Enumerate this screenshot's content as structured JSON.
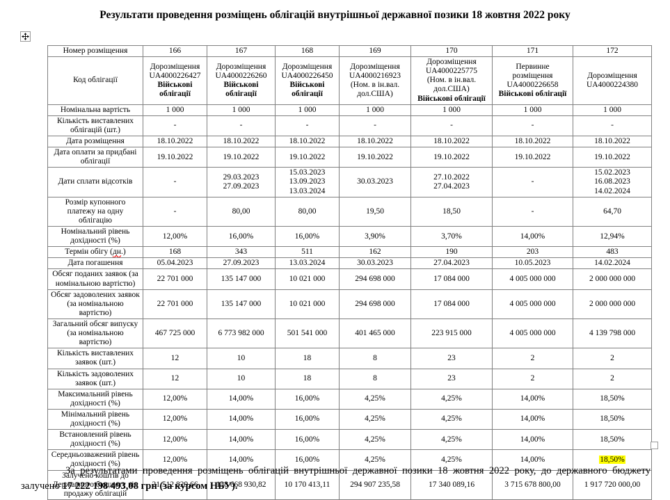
{
  "title": "Результати проведення розміщень облігацій внутрішньої державної позики 18 жовтня 2022 року",
  "colors": {
    "highlight": "#ffff00",
    "table_border": "#808080",
    "spellcheck_underline": "#ff0000"
  },
  "icons": {
    "move_handle": "table-move-handle",
    "resize_handle": "table-resize-handle"
  },
  "table": {
    "header_row": {
      "label": "Номер розміщення",
      "values": [
        "166",
        "167",
        "168",
        "169",
        "170",
        "171",
        "172"
      ]
    },
    "bond_row": {
      "label": "Код облігації",
      "cells": [
        {
          "lines": [
            "Дорозміщення",
            "UA4000226427"
          ],
          "bold_lines": [
            "Військові",
            "облігації"
          ]
        },
        {
          "lines": [
            "Дорозміщення",
            "UA4000226260"
          ],
          "bold_lines": [
            "Військові",
            "облігації"
          ]
        },
        {
          "lines": [
            "Дорозміщення",
            "UA4000226450"
          ],
          "bold_lines": [
            "Військові",
            "облігації"
          ]
        },
        {
          "lines": [
            "Дорозміщення",
            "UA4000216923",
            "(Ном. в ін.вал.",
            "дол.США)"
          ],
          "bold_lines": []
        },
        {
          "lines": [
            "Дорозміщення",
            "UA4000225775",
            "(Ном. в ін.вал.",
            "дол.США)"
          ],
          "bold_lines": [
            "Військові облігації"
          ]
        },
        {
          "lines": [
            "Первинне",
            "розміщення",
            "UA4000226658"
          ],
          "bold_lines": [
            "Військові облігації"
          ]
        },
        {
          "lines": [
            "Дорозміщення",
            "UA4000224380"
          ],
          "bold_lines": []
        }
      ]
    },
    "rows": [
      {
        "label": "Номінальна вартість",
        "values": [
          "1 000",
          "1 000",
          "1 000",
          "1 000",
          "1 000",
          "1 000",
          "1 000"
        ]
      },
      {
        "label": "Кількість виставлених облігацій (шт.)",
        "values": [
          "-",
          "-",
          "-",
          "-",
          "-",
          "-",
          "-"
        ]
      },
      {
        "label": "Дата розміщення",
        "values": [
          "18.10.2022",
          "18.10.2022",
          "18.10.2022",
          "18.10.2022",
          "18.10.2022",
          "18.10.2022",
          "18.10.2022"
        ]
      },
      {
        "label": "Дата оплати за придбані облігації",
        "values": [
          "19.10.2022",
          "19.10.2022",
          "19.10.2022",
          "19.10.2022",
          "19.10.2022",
          "19.10.2022",
          "19.10.2022"
        ]
      },
      {
        "label": "Дати сплати відсотків",
        "values": [
          "-",
          "29.03.2023\n27.09.2023",
          "15.03.2023\n13.09.2023\n13.03.2024",
          "30.03.2023",
          "27.10.2022\n27.04.2023",
          "-",
          "15.02.2023\n16.08.2023\n14.02.2024"
        ]
      },
      {
        "label": "Розмір купонного платежу на одну облігацію",
        "values": [
          "-",
          "80,00",
          "80,00",
          "19,50",
          "18,50",
          "-",
          "64,70"
        ]
      },
      {
        "label": "Номінальний рівень дохідності (%)",
        "values": [
          "12,00%",
          "16,00%",
          "16,00%",
          "3,90%",
          "3,70%",
          "14,00%",
          "12,94%"
        ]
      },
      {
        "label_parts": {
          "pre": "Термін обігу (",
          "word": "дн",
          "post": ".)"
        },
        "label": "Термін обігу (дн.)",
        "values": [
          "168",
          "343",
          "511",
          "162",
          "190",
          "203",
          "483"
        ]
      },
      {
        "label": "Дата погашення",
        "values": [
          "05.04.2023",
          "27.09.2023",
          "13.03.2024",
          "30.03.2023",
          "27.04.2023",
          "10.05.2023",
          "14.02.2024"
        ]
      },
      {
        "label": "Обсяг поданих заявок (за номінальною вартістю)",
        "values": [
          "22 701 000",
          "135 147 000",
          "10 021 000",
          "294 698 000",
          "17 084 000",
          "4 005 000 000",
          "2 000 000 000"
        ]
      },
      {
        "label": "Обсяг задоволених заявок (за номінальною вартістю)",
        "values": [
          "22 701 000",
          "135 147 000",
          "10 021 000",
          "294 698 000",
          "17 084 000",
          "4 005 000 000",
          "2 000 000 000"
        ]
      },
      {
        "label": "Загальний обсяг випуску (за номінальною вартістю)",
        "values": [
          "467 725 000",
          "6 773 982 000",
          "501 541 000",
          "401 465 000",
          "223 915 000",
          "4 005 000 000",
          "4 139 798 000"
        ]
      },
      {
        "label": "Кількість виставлених заявок (шт.)",
        "values": [
          "12",
          "10",
          "18",
          "8",
          "23",
          "2",
          "2"
        ]
      },
      {
        "label": "Кількість задоволених заявок (шт.)",
        "values": [
          "12",
          "10",
          "18",
          "8",
          "23",
          "2",
          "2"
        ]
      },
      {
        "label": "Максимальний рівень дохідності (%)",
        "values": [
          "12,00%",
          "14,00%",
          "16,00%",
          "4,25%",
          "4,25%",
          "14,00%",
          "18,50%"
        ]
      },
      {
        "label": "Мінімальний рівень дохідності (%)",
        "values": [
          "12,00%",
          "14,00%",
          "16,00%",
          "4,25%",
          "4,25%",
          "14,00%",
          "18,50%"
        ]
      },
      {
        "label": "Встановлений рівень дохідності (%)",
        "values": [
          "12,00%",
          "14,00%",
          "16,00%",
          "4,25%",
          "4,25%",
          "14,00%",
          "18,50%"
        ]
      },
      {
        "label": "Середньозважений рівень дохідності (%)",
        "highlight_col": 6,
        "values": [
          "12,00%",
          "14,00%",
          "16,00%",
          "4,25%",
          "4,25%",
          "14,00%",
          "18,50%"
        ]
      },
      {
        "label": "Залучено коштів до Державного бюджету від продажу облігацій",
        "values": [
          "21 512 829,66",
          "138 668 930,82",
          "10 170 413,11",
          "294 907 235,58",
          "17 340 089,16",
          "3 715 678 800,00",
          "1 917 720 000,00"
        ]
      }
    ]
  },
  "footer": {
    "text": "За результатами проведення розміщень облігацій внутрішньої державної позики 18 жовтня 2022 року, до державного бюджету залучено ",
    "bold_text": "17 222 198 493,08 грн (за курсом НБУ)."
  }
}
